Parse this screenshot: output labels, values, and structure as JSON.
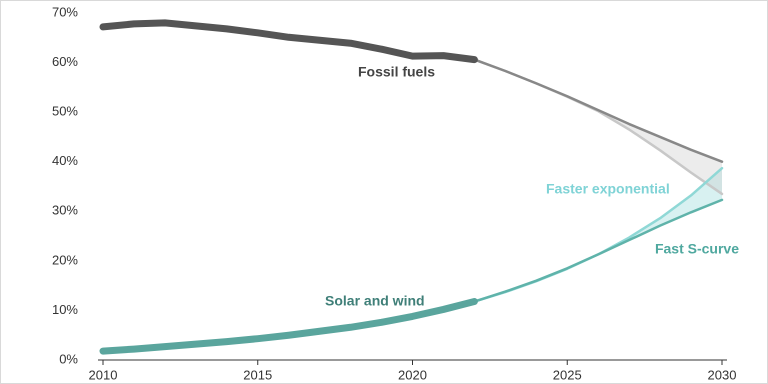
{
  "chart_data": {
    "type": "line",
    "x": [
      2010,
      2011,
      2012,
      2013,
      2014,
      2015,
      2016,
      2017,
      2018,
      2019,
      2020,
      2021,
      2022,
      2023,
      2024,
      2025,
      2026,
      2027,
      2028,
      2029,
      2030
    ],
    "series": [
      {
        "name": "Fossil fuels",
        "color": "#555555",
        "values": [
          67.2,
          67.8,
          68.0,
          67.4,
          66.8,
          66.0,
          65.1,
          64.5,
          63.9,
          62.7,
          61.3,
          61.4,
          60.6,
          null,
          null,
          null,
          null,
          null,
          null,
          null,
          null
        ]
      },
      {
        "name": "Solar and wind",
        "color": "#5aa59d",
        "values": [
          1.8,
          2.2,
          2.7,
          3.2,
          3.7,
          4.3,
          5.0,
          5.8,
          6.6,
          7.6,
          8.8,
          10.2,
          11.8,
          null,
          null,
          null,
          null,
          null,
          null,
          null,
          null
        ]
      },
      {
        "name": "Faster exponential",
        "color": "#8fd8d6",
        "values": [
          null,
          null,
          null,
          null,
          null,
          null,
          null,
          null,
          null,
          null,
          null,
          null,
          11.8,
          13.7,
          15.9,
          18.4,
          21.3,
          24.7,
          28.6,
          33.2,
          38.7
        ]
      },
      {
        "name": "Fast S-curve",
        "color": "#5fb3aa",
        "values": [
          null,
          null,
          null,
          null,
          null,
          null,
          null,
          null,
          null,
          null,
          null,
          null,
          11.8,
          13.8,
          16.0,
          18.5,
          21.3,
          24.2,
          27.1,
          29.8,
          32.3
        ]
      },
      {
        "color": "#c8c8c8",
        "values": [
          null,
          null,
          null,
          null,
          null,
          null,
          null,
          null,
          null,
          null,
          null,
          null,
          60.6,
          58.3,
          55.8,
          53.1,
          50.2,
          46.5,
          42.3,
          37.8,
          33.5
        ]
      },
      {
        "color": "#888888",
        "values": [
          null,
          null,
          null,
          null,
          null,
          null,
          null,
          null,
          null,
          null,
          null,
          null,
          60.6,
          58.3,
          55.8,
          53.2,
          50.4,
          47.6,
          45.0,
          42.4,
          40.0
        ]
      }
    ],
    "xlim": [
      2010,
      2030
    ],
    "xticks": [
      2010,
      2015,
      2020,
      2025,
      2030
    ],
    "ylim": [
      0,
      70
    ],
    "yticks": [
      {
        "value": 0,
        "label": "0%"
      },
      {
        "value": 10,
        "label": "10%"
      },
      {
        "value": 20,
        "label": "20%"
      },
      {
        "value": 30,
        "label": "30%"
      },
      {
        "value": 40,
        "label": "40%"
      },
      {
        "value": 50,
        "label": "50%"
      },
      {
        "value": 60,
        "label": "60%"
      },
      {
        "value": 70,
        "label": "70%"
      }
    ]
  }
}
